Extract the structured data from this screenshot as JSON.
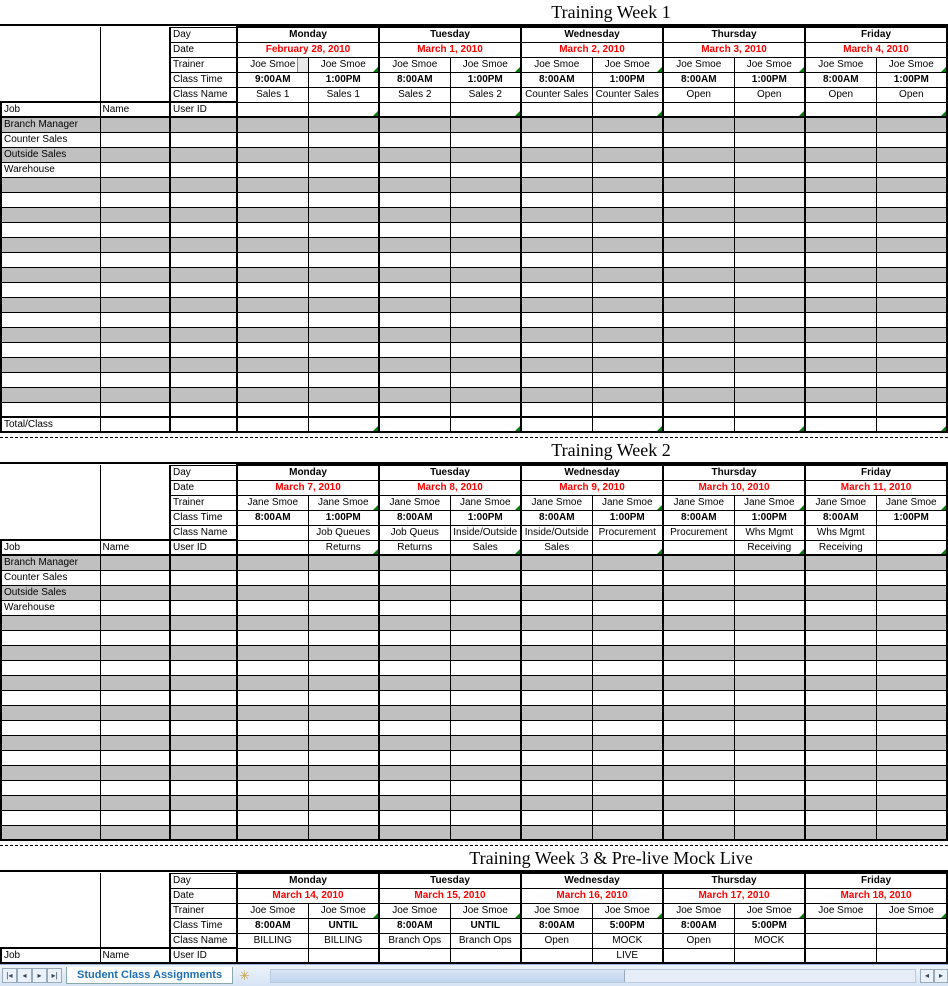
{
  "colors": {
    "gray": "#c0c0c0",
    "date_red": "#ff0000",
    "green_tri": "#008000",
    "tab_text": "#1f6fb5"
  },
  "header_labels": {
    "day": "Day",
    "date": "Date",
    "trainer": "Trainer",
    "class_time": "Class Time",
    "class_name": "Class Name",
    "user_id": "User ID",
    "job": "Job",
    "name": "Name",
    "total_class": "Total/Class"
  },
  "jobs": [
    "Branch Manager",
    "Counter Sales",
    "Outside Sales",
    "Warehouse"
  ],
  "weeks": [
    {
      "title": "Training Week 1",
      "days": [
        {
          "day": "Monday",
          "date": "February 28, 2010",
          "cols": [
            {
              "trainer": "Joe Smoe",
              "time": "9:00AM",
              "class": "Sales 1",
              "selected": true
            },
            {
              "trainer": "Joe Smoe",
              "time": "1:00PM",
              "class": "Sales 1"
            }
          ]
        },
        {
          "day": "Tuesday",
          "date": "March 1, 2010",
          "cols": [
            {
              "trainer": "Joe Smoe",
              "time": "8:00AM",
              "class": "Sales 2"
            },
            {
              "trainer": "Joe Smoe",
              "time": "1:00PM",
              "class": "Sales 2"
            }
          ]
        },
        {
          "day": "Wednesday",
          "date": "March 2, 2010",
          "cols": [
            {
              "trainer": "Joe Smoe",
              "time": "8:00AM",
              "class": "Counter Sales",
              "span_class": true
            },
            {
              "trainer": "Joe Smoe",
              "time": "1:00PM",
              "class": "Counter Sales"
            }
          ]
        },
        {
          "day": "Thursday",
          "date": "March 3, 2010",
          "cols": [
            {
              "trainer": "Joe Smoe",
              "time": "8:00AM",
              "class": "Open"
            },
            {
              "trainer": "Joe Smoe",
              "time": "1:00PM",
              "class": "Open"
            }
          ]
        },
        {
          "day": "Friday",
          "date": "March 4, 2010",
          "cols": [
            {
              "trainer": "Joe Smoe",
              "time": "8:00AM",
              "class": "Open"
            },
            {
              "trainer": "Joe Smoe",
              "time": "1:00PM",
              "class": "Open"
            }
          ]
        }
      ],
      "blank_rows": 16,
      "show_total": true
    },
    {
      "title": "Training Week 2",
      "days": [
        {
          "day": "Monday",
          "date": "March 7, 2010",
          "cols": [
            {
              "trainer": "Jane Smoe",
              "time": "8:00AM",
              "class": ""
            },
            {
              "trainer": "Jane Smoe",
              "time": "1:00PM",
              "class": "Job Queues Returns",
              "two_line": true
            }
          ]
        },
        {
          "day": "Tuesday",
          "date": "March 8, 2010",
          "cols": [
            {
              "trainer": "Jane Smoe",
              "time": "8:00AM",
              "class": "Job Queus Returns",
              "two_line": true
            },
            {
              "trainer": "Jane Smoe",
              "time": "1:00PM",
              "class": "Inside/Outside Sales",
              "two_line": true
            }
          ]
        },
        {
          "day": "Wednesday",
          "date": "March 9, 2010",
          "cols": [
            {
              "trainer": "Jane Smoe",
              "time": "8:00AM",
              "class": "Inside/Outside Sales",
              "two_line": true
            },
            {
              "trainer": "Jane Smoe",
              "time": "1:00PM",
              "class": "Procurement"
            }
          ]
        },
        {
          "day": "Thursday",
          "date": "March 10, 2010",
          "cols": [
            {
              "trainer": "Jane Smoe",
              "time": "8:00AM",
              "class": "Procurement"
            },
            {
              "trainer": "Jane Smoe",
              "time": "1:00PM",
              "class": "Whs Mgmt Receiving",
              "two_line": true
            }
          ]
        },
        {
          "day": "Friday",
          "date": "March 11, 2010",
          "cols": [
            {
              "trainer": "Jane Smoe",
              "time": "8:00AM",
              "class": "Whs Mgmt Receiving",
              "two_line": true
            },
            {
              "trainer": "Jane Smoe",
              "time": "1:00PM",
              "class": ""
            }
          ]
        }
      ],
      "blank_rows": 15,
      "show_total": false
    },
    {
      "title": "Training Week 3 & Pre-live Mock Live",
      "days": [
        {
          "day": "Monday",
          "date": "March 14, 2010",
          "cols": [
            {
              "trainer": "Joe Smoe",
              "time": "8:00AM",
              "class": "BILLING"
            },
            {
              "trainer": "Joe Smoe",
              "time": "UNTIL",
              "class": "BILLING"
            }
          ]
        },
        {
          "day": "Tuesday",
          "date": "March 15, 2010",
          "cols": [
            {
              "trainer": "Joe Smoe",
              "time": "8:00AM",
              "class": "Branch Ops"
            },
            {
              "trainer": "Joe Smoe",
              "time": "UNTIL",
              "class": "Branch Ops"
            }
          ]
        },
        {
          "day": "Wednesday",
          "date": "March 16, 2010",
          "cols": [
            {
              "trainer": "Joe Smoe",
              "time": "8:00AM",
              "class": "Open"
            },
            {
              "trainer": "Joe Smoe",
              "time": "5:00PM",
              "class": "MOCK LIVE",
              "two_line": true
            }
          ]
        },
        {
          "day": "Thursday",
          "date": "March 17, 2010",
          "cols": [
            {
              "trainer": "Joe Smoe",
              "time": "8:00AM",
              "class": "Open"
            },
            {
              "trainer": "Joe Smoe",
              "time": "5:00PM",
              "class": "MOCK"
            }
          ]
        },
        {
          "day": "Friday",
          "date": "March 18, 2010",
          "cols": [
            {
              "trainer": "Joe Smoe",
              "time": "",
              "class": ""
            },
            {
              "trainer": "Joe Smoe",
              "time": "",
              "class": ""
            }
          ]
        }
      ],
      "blank_rows": 0,
      "show_total": false,
      "cut_after_class_row": true
    }
  ],
  "footer": {
    "sheet_tab": "Student Class Assignments"
  }
}
